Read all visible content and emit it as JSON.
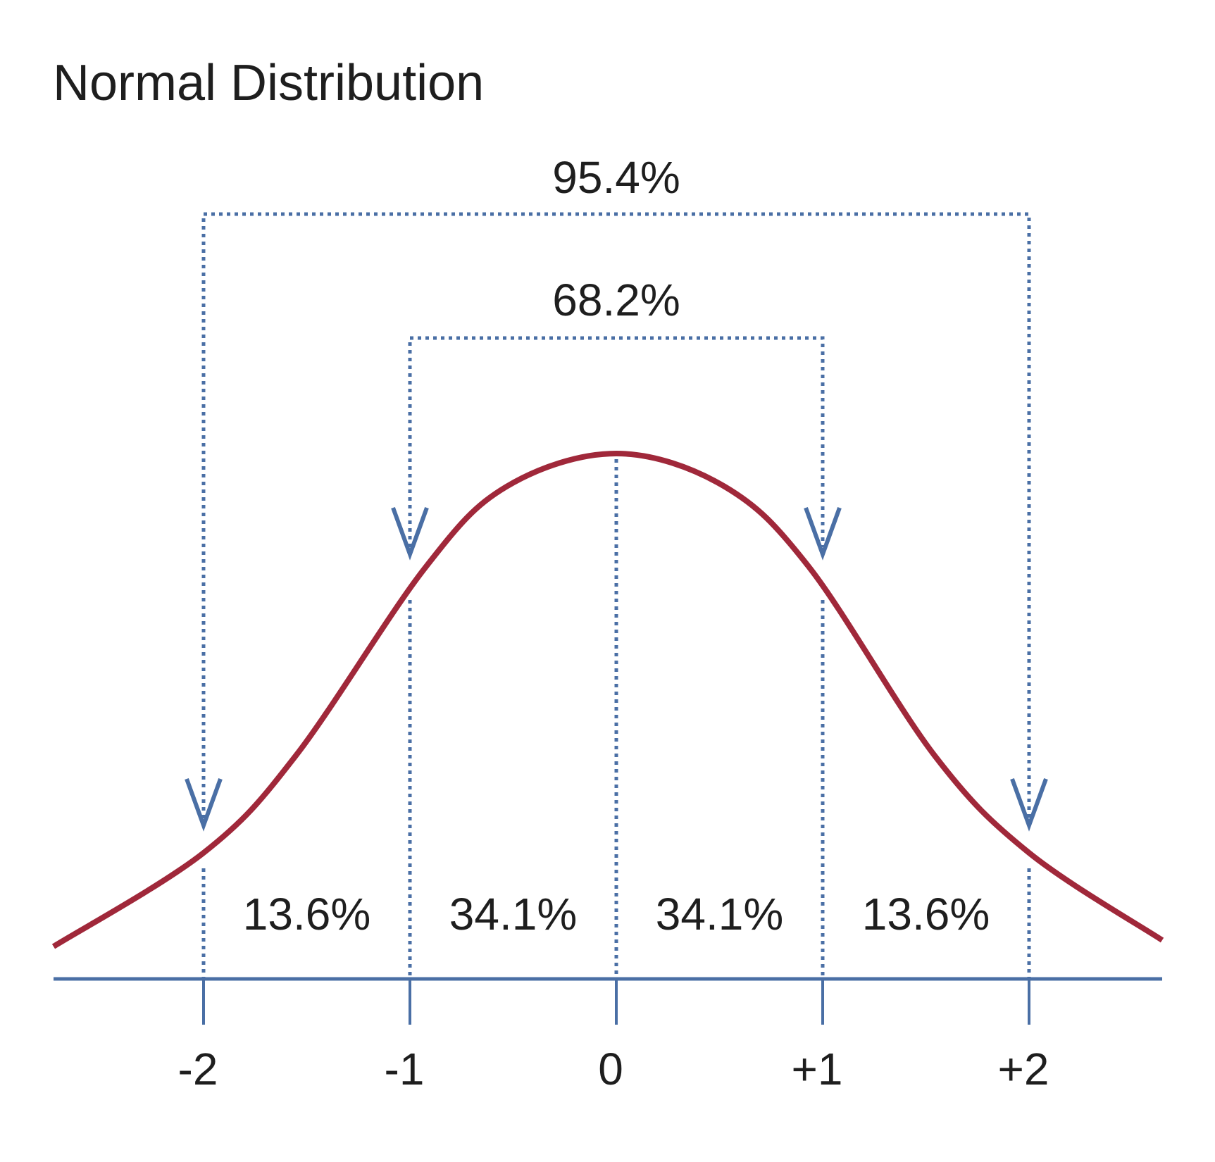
{
  "title": "Normal Distribution",
  "colors": {
    "curve": "#a0283a",
    "axis": "#4a6fa5",
    "text": "#1e1e1e"
  },
  "chart_data": {
    "type": "line",
    "title": "Normal Distribution",
    "x_ticks": [
      "-2",
      "-1",
      "0",
      "+1",
      "+2"
    ],
    "segments": [
      {
        "from": -2,
        "to": -1,
        "label": "13.6%"
      },
      {
        "from": -1,
        "to": 0,
        "label": "34.1%"
      },
      {
        "from": 0,
        "to": 1,
        "label": "34.1%"
      },
      {
        "from": 1,
        "to": 2,
        "label": "13.6%"
      }
    ],
    "brackets": [
      {
        "from": -2,
        "to": 2,
        "label": "95.4%"
      },
      {
        "from": -1,
        "to": 1,
        "label": "68.2%"
      }
    ]
  }
}
